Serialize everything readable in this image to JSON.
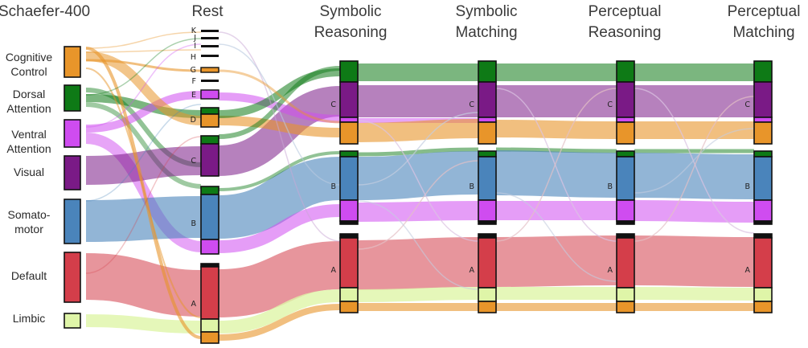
{
  "columns": [
    {
      "title_lines": [
        "Schaefer-400"
      ]
    },
    {
      "title_lines": [
        "Rest"
      ]
    },
    {
      "title_lines": [
        "Symbolic",
        "Reasoning"
      ]
    },
    {
      "title_lines": [
        "Symbolic",
        "Matching"
      ]
    },
    {
      "title_lines": [
        "Perceptual",
        "Reasoning"
      ]
    },
    {
      "title_lines": [
        "Perceptual",
        "Matching"
      ]
    }
  ],
  "networks": [
    {
      "label_lines": [
        "Cognitive",
        "Control"
      ],
      "color": "#e8952a"
    },
    {
      "label_lines": [
        "Dorsal",
        "Attention"
      ],
      "color": "#0e7a16"
    },
    {
      "label_lines": [
        "Ventral",
        "Attention"
      ],
      "color": "#cf4cf0"
    },
    {
      "label_lines": [
        "Visual"
      ],
      "color": "#7a1a86"
    },
    {
      "label_lines": [
        "Somato-",
        "motor"
      ],
      "color": "#4a84bb"
    },
    {
      "label_lines": [
        "Default"
      ],
      "color": "#d43e4a"
    },
    {
      "label_lines": [
        "Limbic"
      ],
      "color": "#dff5a8"
    }
  ],
  "rest_small_modules": [
    "K",
    "J",
    "I",
    "H",
    "G",
    "F",
    "E",
    "D"
  ],
  "module_labels": [
    "C",
    "B",
    "A"
  ]
}
